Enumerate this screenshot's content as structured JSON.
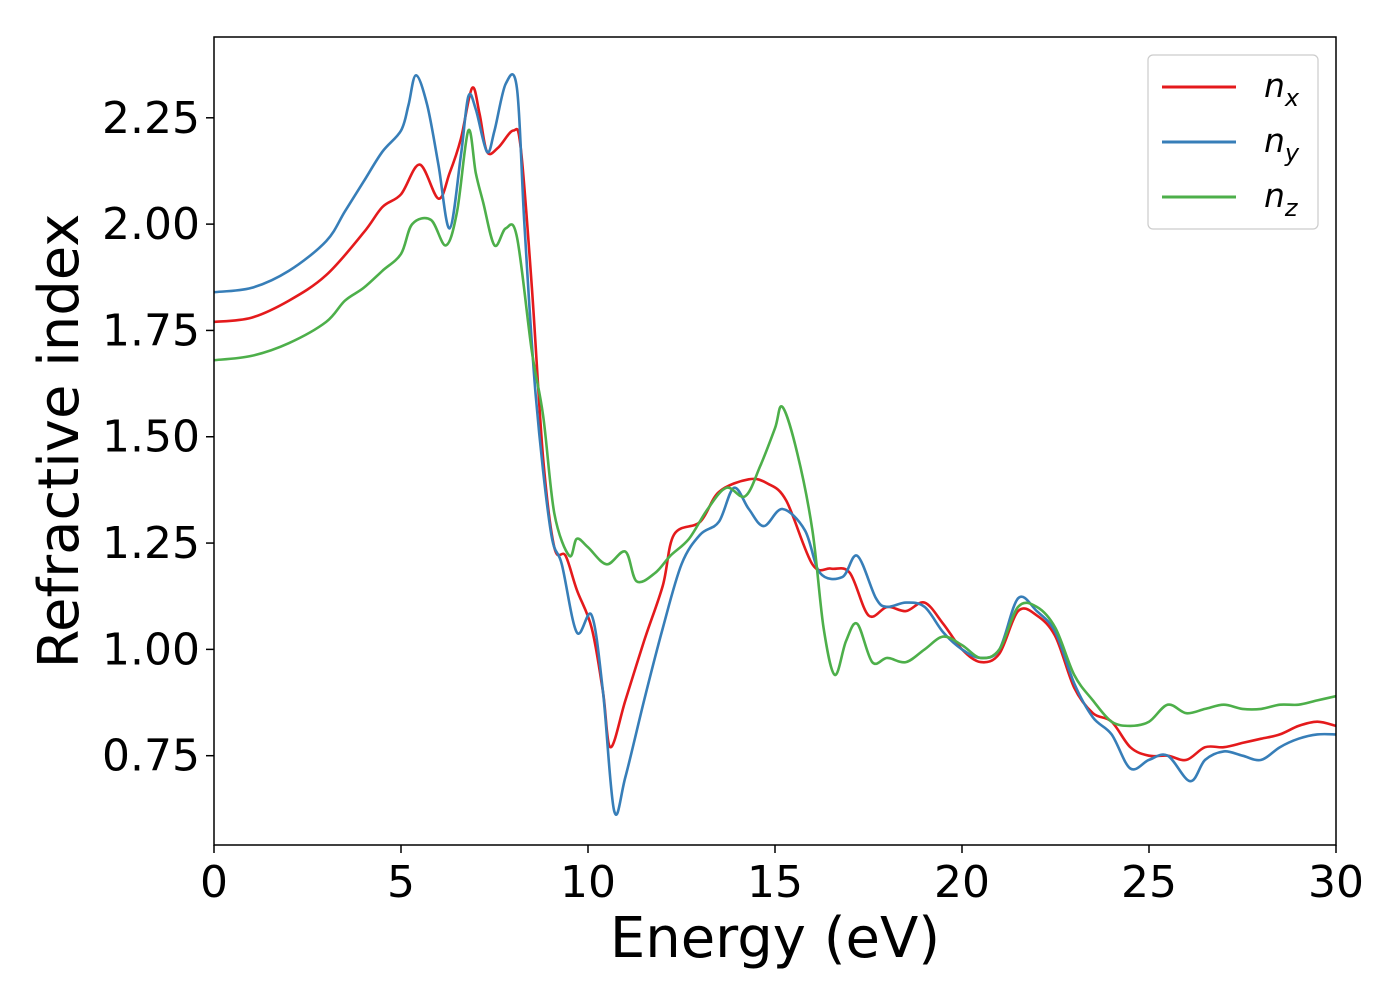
{
  "chart_data": {
    "type": "line",
    "xlabel": "Energy (eV)",
    "ylabel": "Refractive index",
    "xlim": [
      0,
      30
    ],
    "ylim": [
      0.54,
      2.44
    ],
    "xticks": [
      0,
      5,
      10,
      15,
      20,
      25,
      30
    ],
    "xtick_labels": [
      "0",
      "5",
      "10",
      "15",
      "20",
      "25",
      "30"
    ],
    "yticks": [
      0.75,
      1.0,
      1.25,
      1.5,
      1.75,
      2.0,
      2.25
    ],
    "ytick_labels": [
      "0.75",
      "1.00",
      "1.25",
      "1.50",
      "1.75",
      "2.00",
      "2.25"
    ],
    "grid": false,
    "legend_position": "top-right",
    "series": [
      {
        "name": "n",
        "subscript": "x",
        "color": "#e41a1c",
        "points": [
          [
            0,
            1.77
          ],
          [
            1,
            1.78
          ],
          [
            2,
            1.82
          ],
          [
            3,
            1.88
          ],
          [
            4,
            1.98
          ],
          [
            4.5,
            2.04
          ],
          [
            5,
            2.07
          ],
          [
            5.5,
            2.14
          ],
          [
            6,
            2.06
          ],
          [
            6.3,
            2.12
          ],
          [
            6.6,
            2.2
          ],
          [
            6.9,
            2.32
          ],
          [
            7.1,
            2.26
          ],
          [
            7.3,
            2.17
          ],
          [
            7.6,
            2.18
          ],
          [
            8,
            2.22
          ],
          [
            8.2,
            2.18
          ],
          [
            8.5,
            1.85
          ],
          [
            8.8,
            1.45
          ],
          [
            9.1,
            1.24
          ],
          [
            9.4,
            1.22
          ],
          [
            9.7,
            1.14
          ],
          [
            10.1,
            1.05
          ],
          [
            10.4,
            0.9
          ],
          [
            10.6,
            0.77
          ],
          [
            11,
            0.88
          ],
          [
            11.5,
            1.02
          ],
          [
            12,
            1.15
          ],
          [
            12.3,
            1.27
          ],
          [
            13,
            1.3
          ],
          [
            13.5,
            1.37
          ],
          [
            14.3,
            1.4
          ],
          [
            14.8,
            1.39
          ],
          [
            15.3,
            1.35
          ],
          [
            16,
            1.2
          ],
          [
            16.5,
            1.19
          ],
          [
            17,
            1.18
          ],
          [
            17.5,
            1.08
          ],
          [
            18,
            1.1
          ],
          [
            18.5,
            1.09
          ],
          [
            19,
            1.11
          ],
          [
            19.5,
            1.06
          ],
          [
            20,
            1.0
          ],
          [
            20.5,
            0.97
          ],
          [
            21,
            0.99
          ],
          [
            21.5,
            1.09
          ],
          [
            22,
            1.08
          ],
          [
            22.5,
            1.03
          ],
          [
            23,
            0.91
          ],
          [
            23.5,
            0.85
          ],
          [
            24,
            0.83
          ],
          [
            24.5,
            0.77
          ],
          [
            25,
            0.75
          ],
          [
            25.5,
            0.75
          ],
          [
            26,
            0.74
          ],
          [
            26.5,
            0.77
          ],
          [
            27,
            0.77
          ],
          [
            27.5,
            0.78
          ],
          [
            28,
            0.79
          ],
          [
            28.5,
            0.8
          ],
          [
            29,
            0.82
          ],
          [
            29.5,
            0.83
          ],
          [
            30,
            0.82
          ]
        ]
      },
      {
        "name": "n",
        "subscript": "y",
        "color": "#377eb8",
        "points": [
          [
            0,
            1.84
          ],
          [
            1,
            1.85
          ],
          [
            2,
            1.89
          ],
          [
            3,
            1.96
          ],
          [
            3.5,
            2.03
          ],
          [
            4,
            2.1
          ],
          [
            4.5,
            2.17
          ],
          [
            5,
            2.22
          ],
          [
            5.2,
            2.28
          ],
          [
            5.4,
            2.35
          ],
          [
            5.7,
            2.28
          ],
          [
            6,
            2.14
          ],
          [
            6.3,
            1.99
          ],
          [
            6.6,
            2.16
          ],
          [
            6.8,
            2.3
          ],
          [
            7,
            2.27
          ],
          [
            7.3,
            2.17
          ],
          [
            7.5,
            2.22
          ],
          [
            7.8,
            2.33
          ],
          [
            8.1,
            2.32
          ],
          [
            8.3,
            2.0
          ],
          [
            8.6,
            1.6
          ],
          [
            9,
            1.28
          ],
          [
            9.3,
            1.2
          ],
          [
            9.7,
            1.04
          ],
          [
            10.1,
            1.08
          ],
          [
            10.4,
            0.9
          ],
          [
            10.7,
            0.62
          ],
          [
            11,
            0.7
          ],
          [
            11.5,
            0.88
          ],
          [
            12,
            1.05
          ],
          [
            12.5,
            1.2
          ],
          [
            13,
            1.27
          ],
          [
            13.5,
            1.3
          ],
          [
            13.9,
            1.38
          ],
          [
            14.3,
            1.33
          ],
          [
            14.7,
            1.29
          ],
          [
            15.2,
            1.33
          ],
          [
            15.8,
            1.28
          ],
          [
            16.2,
            1.18
          ],
          [
            16.8,
            1.17
          ],
          [
            17.2,
            1.22
          ],
          [
            17.7,
            1.12
          ],
          [
            18,
            1.1
          ],
          [
            18.5,
            1.11
          ],
          [
            19,
            1.1
          ],
          [
            19.5,
            1.04
          ],
          [
            20,
            1.0
          ],
          [
            20.5,
            0.98
          ],
          [
            21,
            1.0
          ],
          [
            21.5,
            1.12
          ],
          [
            22,
            1.09
          ],
          [
            22.5,
            1.04
          ],
          [
            23,
            0.92
          ],
          [
            23.5,
            0.84
          ],
          [
            24,
            0.8
          ],
          [
            24.5,
            0.72
          ],
          [
            25,
            0.74
          ],
          [
            25.5,
            0.75
          ],
          [
            26.1,
            0.69
          ],
          [
            26.5,
            0.74
          ],
          [
            27,
            0.76
          ],
          [
            27.5,
            0.75
          ],
          [
            28,
            0.74
          ],
          [
            28.5,
            0.77
          ],
          [
            29,
            0.79
          ],
          [
            29.5,
            0.8
          ],
          [
            30,
            0.8
          ]
        ]
      },
      {
        "name": "n",
        "subscript": "z",
        "color": "#4daf4a",
        "points": [
          [
            0,
            1.68
          ],
          [
            1,
            1.69
          ],
          [
            2,
            1.72
          ],
          [
            3,
            1.77
          ],
          [
            3.5,
            1.82
          ],
          [
            4,
            1.85
          ],
          [
            4.5,
            1.89
          ],
          [
            5,
            1.93
          ],
          [
            5.3,
            2.0
          ],
          [
            5.8,
            2.01
          ],
          [
            6.2,
            1.95
          ],
          [
            6.5,
            2.03
          ],
          [
            6.8,
            2.22
          ],
          [
            7,
            2.12
          ],
          [
            7.2,
            2.05
          ],
          [
            7.5,
            1.95
          ],
          [
            7.8,
            1.99
          ],
          [
            8.1,
            1.97
          ],
          [
            8.5,
            1.7
          ],
          [
            8.8,
            1.55
          ],
          [
            9.1,
            1.32
          ],
          [
            9.5,
            1.22
          ],
          [
            9.7,
            1.26
          ],
          [
            10,
            1.24
          ],
          [
            10.5,
            1.2
          ],
          [
            11,
            1.23
          ],
          [
            11.3,
            1.16
          ],
          [
            11.8,
            1.18
          ],
          [
            12.2,
            1.22
          ],
          [
            12.7,
            1.26
          ],
          [
            13.2,
            1.33
          ],
          [
            13.7,
            1.38
          ],
          [
            14.2,
            1.36
          ],
          [
            14.6,
            1.43
          ],
          [
            15,
            1.52
          ],
          [
            15.2,
            1.57
          ],
          [
            15.6,
            1.46
          ],
          [
            16,
            1.28
          ],
          [
            16.3,
            1.05
          ],
          [
            16.6,
            0.94
          ],
          [
            16.9,
            1.02
          ],
          [
            17.2,
            1.06
          ],
          [
            17.6,
            0.97
          ],
          [
            18,
            0.98
          ],
          [
            18.5,
            0.97
          ],
          [
            19,
            1.0
          ],
          [
            19.5,
            1.03
          ],
          [
            20,
            1.01
          ],
          [
            20.5,
            0.98
          ],
          [
            21,
            1.0
          ],
          [
            21.5,
            1.1
          ],
          [
            22,
            1.1
          ],
          [
            22.5,
            1.05
          ],
          [
            23,
            0.94
          ],
          [
            23.5,
            0.88
          ],
          [
            24,
            0.83
          ],
          [
            24.5,
            0.82
          ],
          [
            25,
            0.83
          ],
          [
            25.5,
            0.87
          ],
          [
            26,
            0.85
          ],
          [
            26.5,
            0.86
          ],
          [
            27,
            0.87
          ],
          [
            27.5,
            0.86
          ],
          [
            28,
            0.86
          ],
          [
            28.5,
            0.87
          ],
          [
            29,
            0.87
          ],
          [
            29.5,
            0.88
          ],
          [
            30,
            0.89
          ]
        ]
      }
    ]
  }
}
